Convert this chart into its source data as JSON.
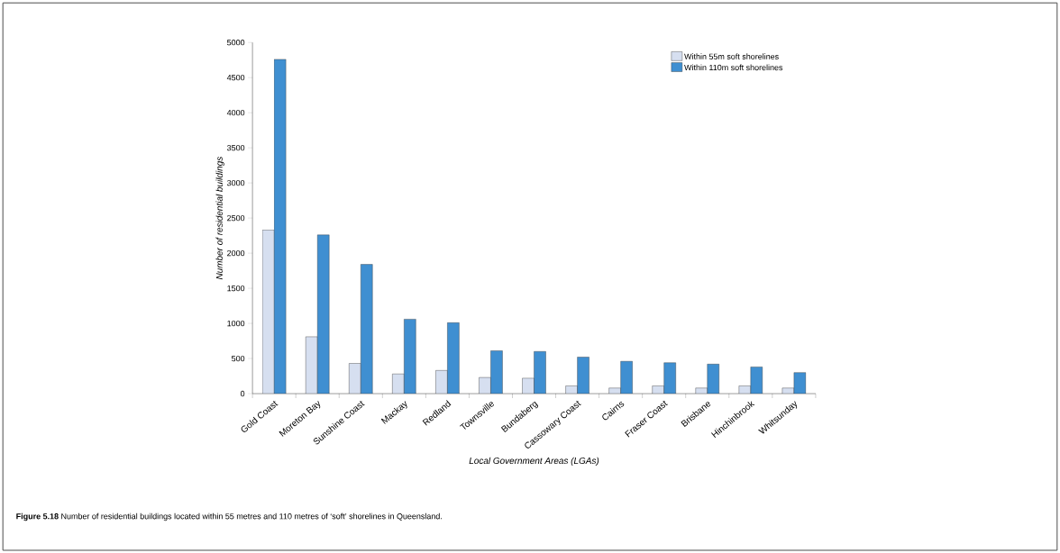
{
  "chart_data": {
    "type": "bar",
    "xlabel": "Local Government Areas (LGAs)",
    "ylabel": "Number of residential buildings",
    "categories": [
      "Gold Coast",
      "Moreton Bay",
      "Sunshine Coast",
      "Mackay",
      "Redland",
      "Townsville",
      "Bundaberg",
      "Cassowary Coast",
      "Cairns",
      "Fraser Coast",
      "Brisbane",
      "Hinchinbrook",
      "Whitsunday"
    ],
    "series": [
      {
        "name": "Within 55m soft shorelines",
        "color": "#d6dff0",
        "values": [
          2330,
          810,
          430,
          280,
          330,
          230,
          220,
          110,
          80,
          110,
          80,
          110,
          80
        ]
      },
      {
        "name": "Within 110m soft shorelines",
        "color": "#3f8fd1",
        "values": [
          4760,
          2260,
          1840,
          1060,
          1010,
          610,
          600,
          520,
          460,
          440,
          420,
          380,
          300
        ]
      }
    ],
    "ylim": [
      0,
      5000
    ],
    "yticks": [
      0,
      500,
      1000,
      1500,
      2000,
      2500,
      3000,
      3500,
      4000,
      4500,
      5000
    ],
    "grid": false,
    "legend": "top right",
    "annotations": [
      "**Figure 5.18** Number of residential buildings located within 55 metres and 110 metres of ‘soft’ shorelines in Queensland."
    ]
  }
}
